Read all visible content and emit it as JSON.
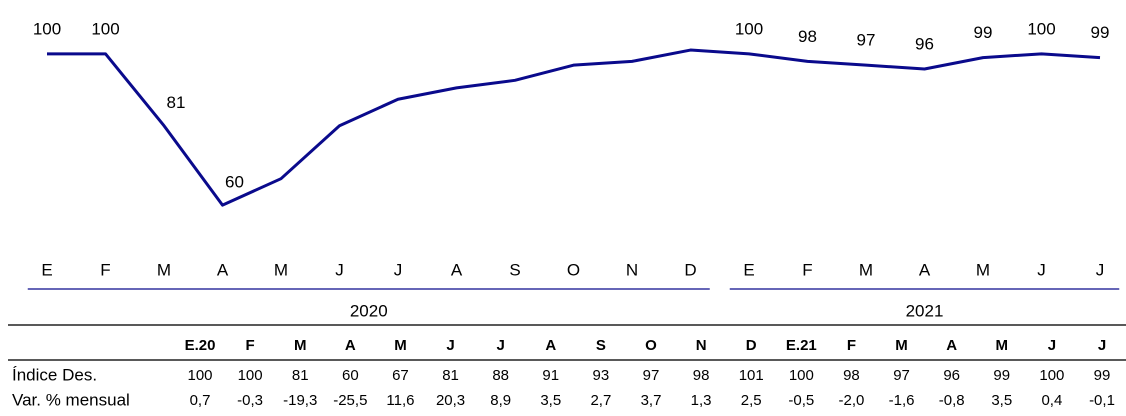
{
  "chart_data": {
    "type": "line",
    "color": "#0a0a8c",
    "categories": [
      "E",
      "F",
      "M",
      "A",
      "M",
      "J",
      "J",
      "A",
      "S",
      "O",
      "N",
      "D",
      "E",
      "F",
      "M",
      "A",
      "M",
      "J",
      "J"
    ],
    "values": [
      100,
      100,
      81,
      60,
      67,
      81,
      88,
      91,
      93,
      97,
      98,
      101,
      100,
      98,
      97,
      96,
      99,
      100,
      99
    ],
    "value_labels": [
      "100",
      "100",
      "81",
      "60",
      null,
      null,
      null,
      null,
      null,
      null,
      null,
      null,
      "100",
      "98",
      "97",
      "96",
      "99",
      "100",
      "99"
    ],
    "ylim": [
      50,
      110
    ],
    "year_groups": [
      {
        "label": "2020",
        "span": 12
      },
      {
        "label": "2021",
        "span": 7
      }
    ]
  },
  "table": {
    "header": [
      "E.20",
      "F",
      "M",
      "A",
      "M",
      "J",
      "J",
      "A",
      "S",
      "O",
      "N",
      "D",
      "E.21",
      "F",
      "M",
      "A",
      "M",
      "J",
      "J"
    ],
    "rows": [
      {
        "label": "Índice Des.",
        "cells": [
          "100",
          "100",
          "81",
          "60",
          "67",
          "81",
          "88",
          "91",
          "93",
          "97",
          "98",
          "101",
          "100",
          "98",
          "97",
          "96",
          "99",
          "100",
          "99"
        ]
      },
      {
        "label": "Var. % mensual",
        "cells": [
          "0,7",
          "-0,3",
          "-19,3",
          "-25,5",
          "11,6",
          "20,3",
          "8,9",
          "3,5",
          "2,7",
          "3,7",
          "1,3",
          "2,5",
          "-0,5",
          "-2,0",
          "-1,6",
          "-0,8",
          "3,5",
          "0,4",
          "-0,1"
        ]
      }
    ]
  }
}
